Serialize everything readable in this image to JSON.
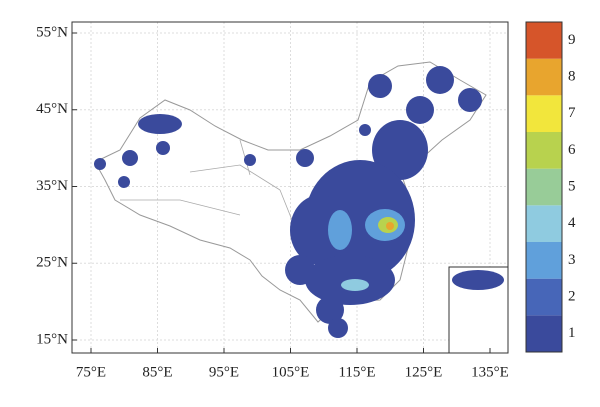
{
  "chart_data": {
    "type": "map",
    "xticks": [
      {
        "value": 75,
        "label": "75°E"
      },
      {
        "value": 85,
        "label": "85°E"
      },
      {
        "value": 95,
        "label": "95°E"
      },
      {
        "value": 105,
        "label": "105°E"
      },
      {
        "value": 115,
        "label": "115°E"
      },
      {
        "value": 125,
        "label": "125°E"
      },
      {
        "value": 135,
        "label": "135°E"
      }
    ],
    "yticks": [
      {
        "value": 15,
        "label": "15°N"
      },
      {
        "value": 25,
        "label": "25°N"
      },
      {
        "value": 35,
        "label": "35°N"
      },
      {
        "value": 45,
        "label": "45°N"
      },
      {
        "value": 55,
        "label": "55°N"
      }
    ],
    "grid": true,
    "colorbar": {
      "levels": [
        1,
        2,
        3,
        4,
        5,
        6,
        7,
        8,
        9
      ],
      "colors": [
        "#3a4a9c",
        "#4766b8",
        "#60a0db",
        "#8fcbe0",
        "#98cc98",
        "#b8d24e",
        "#f2e63c",
        "#e8a52e",
        "#d6552a"
      ]
    }
  }
}
